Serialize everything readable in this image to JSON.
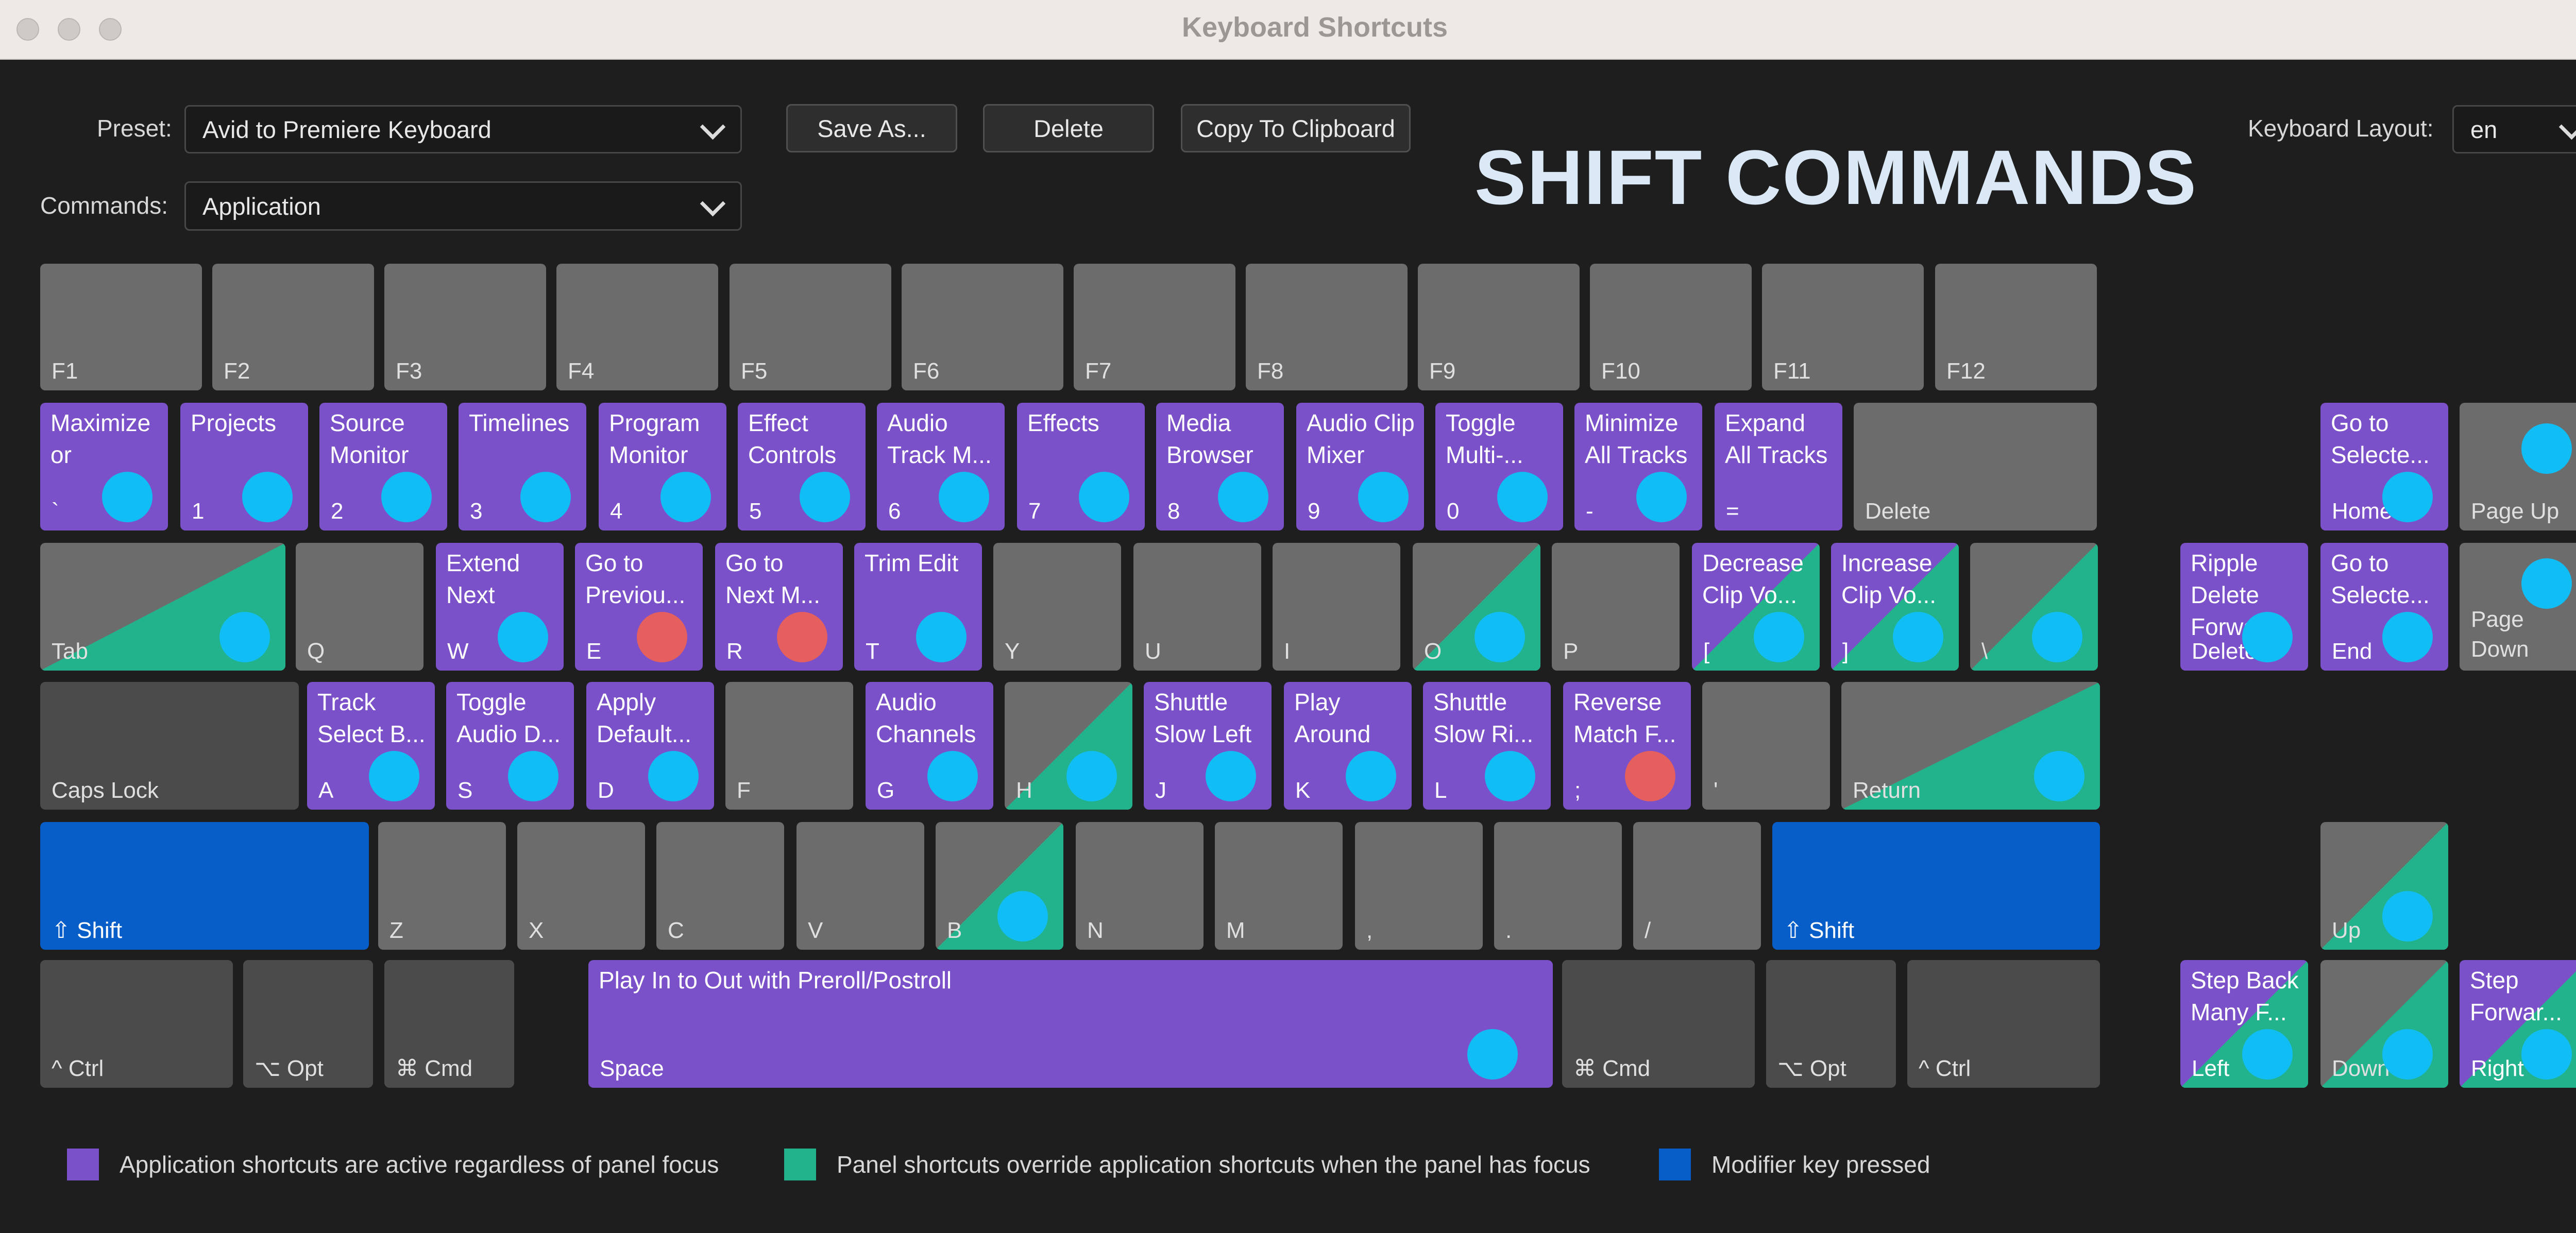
{
  "window": {
    "title": "Keyboard Shortcuts"
  },
  "header": {
    "preset_label": "Preset:",
    "preset_value": "Avid to Premiere Keyboard",
    "commands_label": "Commands:",
    "commands_value": "Application",
    "save_as": "Save As...",
    "delete": "Delete",
    "copy": "Copy To Clipboard",
    "layout_label": "Keyboard Layout:",
    "layout_value": "en",
    "overlay_title": "SHIFT COMMANDS"
  },
  "colors": {
    "application": "#7b51c9",
    "panel": "#22b38c",
    "modifier": "#075ec8",
    "assigned_dot": "#11bdf5",
    "conflict_dot": "#e45f5d"
  },
  "keys": [
    {
      "label": "F1",
      "style": "gray"
    },
    {
      "label": "F2",
      "style": "gray"
    },
    {
      "label": "F3",
      "style": "gray"
    },
    {
      "label": "F4",
      "style": "gray"
    },
    {
      "label": "F5",
      "style": "gray"
    },
    {
      "label": "F6",
      "style": "gray"
    },
    {
      "label": "F7",
      "style": "gray"
    },
    {
      "label": "F8",
      "style": "gray"
    },
    {
      "label": "F9",
      "style": "gray"
    },
    {
      "label": "F10",
      "style": "gray"
    },
    {
      "label": "F11",
      "style": "gray"
    },
    {
      "label": "F12",
      "style": "gray"
    },
    {
      "label": "`",
      "command": "Maximize\nor",
      "style": "purple",
      "dot": "cyan"
    },
    {
      "label": "1",
      "command": "Projects",
      "style": "purple",
      "dot": "cyan"
    },
    {
      "label": "2",
      "command": "Source\nMonitor",
      "style": "purple",
      "dot": "cyan"
    },
    {
      "label": "3",
      "command": "Timelines",
      "style": "purple",
      "dot": "cyan"
    },
    {
      "label": "4",
      "command": "Program\nMonitor",
      "style": "purple",
      "dot": "cyan"
    },
    {
      "label": "5",
      "command": "Effect\nControls",
      "style": "purple",
      "dot": "cyan"
    },
    {
      "label": "6",
      "command": "Audio\nTrack M...",
      "style": "purple",
      "dot": "cyan"
    },
    {
      "label": "7",
      "command": "Effects",
      "style": "purple",
      "dot": "cyan"
    },
    {
      "label": "8",
      "command": "Media\nBrowser",
      "style": "purple",
      "dot": "cyan"
    },
    {
      "label": "9",
      "command": "Audio Clip\nMixer",
      "style": "purple",
      "dot": "cyan"
    },
    {
      "label": "0",
      "command": "Toggle\nMulti-...",
      "style": "purple",
      "dot": "cyan"
    },
    {
      "label": "-",
      "command": "Minimize\nAll Tracks",
      "style": "purple",
      "dot": "cyan"
    },
    {
      "label": "=",
      "command": "Expand\nAll Tracks",
      "style": "purple"
    },
    {
      "label": "Delete",
      "style": "gray"
    },
    {
      "label": "Home",
      "command": "Go to\nSelecte...",
      "style": "purple",
      "dot": "cyan"
    },
    {
      "label": "Page Up",
      "style": "gray",
      "dot": "cyan"
    },
    {
      "label": "Tab",
      "style": "split",
      "dot": "cyan"
    },
    {
      "label": "Q",
      "style": "gray"
    },
    {
      "label": "W",
      "command": "Extend\nNext",
      "style": "purple",
      "dot": "cyan"
    },
    {
      "label": "E",
      "command": "Go to\nPreviou...",
      "style": "purple",
      "dot": "red"
    },
    {
      "label": "R",
      "command": "Go to\nNext M...",
      "style": "purple",
      "dot": "red"
    },
    {
      "label": "T",
      "command": "Trim Edit",
      "style": "purple",
      "dot": "cyan"
    },
    {
      "label": "Y",
      "style": "gray"
    },
    {
      "label": "U",
      "style": "gray"
    },
    {
      "label": "I",
      "style": "gray"
    },
    {
      "label": "O",
      "style": "split",
      "dot": "cyan"
    },
    {
      "label": "P",
      "style": "gray"
    },
    {
      "label": "[",
      "command": "Decrease\nClip Vo...",
      "style": "split-purple",
      "dot": "cyan"
    },
    {
      "label": "]",
      "command": "Increase\nClip Vo...",
      "style": "split-purple",
      "dot": "cyan"
    },
    {
      "label": "\\",
      "style": "split",
      "dot": "cyan"
    },
    {
      "label": "Delete",
      "command": "Ripple\nDelete\nForward",
      "style": "purple",
      "dot": "cyan"
    },
    {
      "label": "End",
      "command": "Go to\nSelecte...",
      "style": "purple",
      "dot": "cyan"
    },
    {
      "label": "Page\nDown",
      "style": "gray",
      "dot": "cyan"
    },
    {
      "label": "Caps Lock",
      "style": "dark"
    },
    {
      "label": "A",
      "command": "Track\nSelect B...",
      "style": "purple",
      "dot": "cyan"
    },
    {
      "label": "S",
      "command": "Toggle\nAudio D...",
      "style": "purple",
      "dot": "cyan"
    },
    {
      "label": "D",
      "command": "Apply\nDefault...",
      "style": "purple",
      "dot": "cyan"
    },
    {
      "label": "F",
      "style": "gray"
    },
    {
      "label": "G",
      "command": "Audio\nChannels",
      "style": "purple",
      "dot": "cyan"
    },
    {
      "label": "H",
      "style": "split",
      "dot": "cyan"
    },
    {
      "label": "J",
      "command": "Shuttle\nSlow Left",
      "style": "purple",
      "dot": "cyan"
    },
    {
      "label": "K",
      "command": "Play\nAround",
      "style": "purple",
      "dot": "cyan"
    },
    {
      "label": "L",
      "command": "Shuttle\nSlow Ri...",
      "style": "purple",
      "dot": "cyan"
    },
    {
      "label": ";",
      "command": "Reverse\nMatch F...",
      "style": "purple",
      "dot": "red"
    },
    {
      "label": "'",
      "style": "gray"
    },
    {
      "label": "Return",
      "style": "split",
      "dot": "cyan"
    },
    {
      "label": "⇧ Shift",
      "style": "blue"
    },
    {
      "label": "Z",
      "style": "gray"
    },
    {
      "label": "X",
      "style": "gray"
    },
    {
      "label": "C",
      "style": "gray"
    },
    {
      "label": "V",
      "style": "gray"
    },
    {
      "label": "B",
      "style": "split",
      "dot": "cyan"
    },
    {
      "label": "N",
      "style": "gray"
    },
    {
      "label": "M",
      "style": "gray"
    },
    {
      "label": ",",
      "style": "gray"
    },
    {
      "label": ".",
      "style": "gray"
    },
    {
      "label": "/",
      "style": "gray"
    },
    {
      "label": "⇧ Shift",
      "style": "blue"
    },
    {
      "label": "Up",
      "style": "split",
      "dot": "cyan"
    },
    {
      "label": "^ Ctrl",
      "style": "dark"
    },
    {
      "label": "⌥ Opt",
      "style": "dark"
    },
    {
      "label": "⌘ Cmd",
      "style": "dark"
    },
    {
      "label": "Space",
      "command": "Play In to Out with Preroll/Postroll",
      "style": "purple",
      "dot": "cyan"
    },
    {
      "label": "⌘ Cmd",
      "style": "dark"
    },
    {
      "label": "⌥ Opt",
      "style": "dark"
    },
    {
      "label": "^ Ctrl",
      "style": "dark"
    },
    {
      "label": "Left",
      "command": "Step Back\nMany F...",
      "style": "split-purple",
      "dot": "cyan"
    },
    {
      "label": "Down",
      "style": "split",
      "dot": "cyan"
    },
    {
      "label": "Right",
      "command": "Step\nForwar...",
      "style": "split-purple",
      "dot": "cyan"
    }
  ],
  "legend": [
    {
      "text": "Application shortcuts are active regardless of panel focus",
      "color": "#7b51c9"
    },
    {
      "text": "Panel shortcuts override application shortcuts when the panel has focus",
      "color": "#22b38c"
    },
    {
      "text": "Modifier key pressed",
      "color": "#075ec8"
    }
  ]
}
